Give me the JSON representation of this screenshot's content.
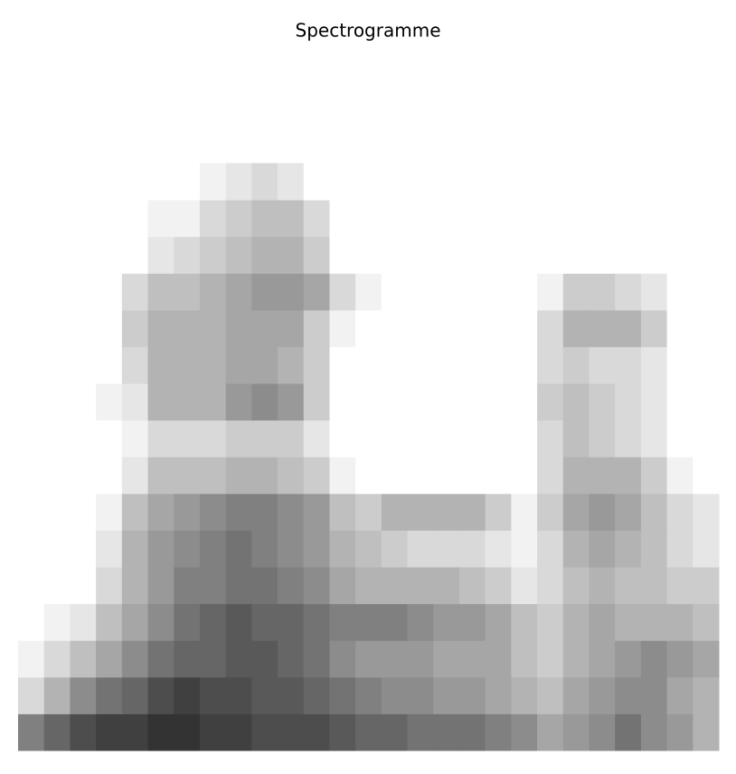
{
  "chart_data": {
    "type": "heatmap",
    "title": "Spectrogramme",
    "colormap": "gray_r",
    "vlim": [
      0,
      100
    ],
    "values": [
      [
        50,
        60,
        70,
        75,
        75,
        80,
        80,
        75,
        75,
        70,
        70,
        70,
        65,
        60,
        60,
        55,
        55,
        55,
        50,
        45,
        35,
        40,
        45,
        55,
        45,
        40,
        30
      ],
      [
        15,
        30,
        45,
        55,
        60,
        70,
        75,
        70,
        70,
        65,
        65,
        60,
        55,
        50,
        45,
        45,
        40,
        40,
        35,
        30,
        25,
        35,
        40,
        45,
        45,
        35,
        30
      ],
      [
        5,
        15,
        25,
        35,
        45,
        55,
        60,
        60,
        65,
        65,
        60,
        55,
        45,
        40,
        40,
        40,
        35,
        35,
        35,
        25,
        20,
        30,
        35,
        40,
        45,
        40,
        35
      ],
      [
        0,
        5,
        10,
        25,
        35,
        45,
        55,
        60,
        65,
        60,
        60,
        55,
        50,
        50,
        50,
        45,
        40,
        40,
        35,
        25,
        20,
        30,
        35,
        30,
        30,
        30,
        25
      ],
      [
        0,
        0,
        0,
        15,
        30,
        40,
        50,
        50,
        55,
        55,
        50,
        45,
        35,
        30,
        30,
        30,
        30,
        25,
        20,
        10,
        15,
        25,
        30,
        25,
        25,
        20,
        20
      ],
      [
        0,
        0,
        0,
        10,
        30,
        40,
        45,
        50,
        55,
        50,
        45,
        40,
        30,
        25,
        20,
        15,
        15,
        15,
        10,
        5,
        15,
        30,
        35,
        30,
        25,
        15,
        10
      ],
      [
        0,
        0,
        0,
        5,
        25,
        35,
        40,
        45,
        50,
        50,
        45,
        40,
        25,
        20,
        30,
        30,
        30,
        30,
        20,
        5,
        20,
        35,
        40,
        35,
        25,
        15,
        10
      ],
      [
        0,
        0,
        0,
        0,
        10,
        25,
        25,
        25,
        30,
        30,
        25,
        20,
        5,
        0,
        0,
        0,
        0,
        0,
        0,
        0,
        15,
        30,
        30,
        30,
        20,
        5,
        0
      ],
      [
        0,
        0,
        0,
        0,
        5,
        15,
        15,
        15,
        20,
        20,
        20,
        10,
        0,
        0,
        0,
        0,
        0,
        0,
        0,
        0,
        15,
        25,
        20,
        15,
        10,
        0,
        0
      ],
      [
        0,
        0,
        0,
        5,
        10,
        30,
        30,
        30,
        40,
        45,
        40,
        20,
        0,
        0,
        0,
        0,
        0,
        0,
        0,
        0,
        20,
        25,
        20,
        15,
        10,
        0,
        0
      ],
      [
        0,
        0,
        0,
        0,
        15,
        30,
        30,
        30,
        35,
        35,
        30,
        20,
        0,
        0,
        0,
        0,
        0,
        0,
        0,
        0,
        15,
        20,
        15,
        15,
        10,
        0,
        0
      ],
      [
        0,
        0,
        0,
        0,
        20,
        30,
        30,
        30,
        35,
        35,
        35,
        20,
        5,
        0,
        0,
        0,
        0,
        0,
        0,
        0,
        15,
        30,
        30,
        30,
        20,
        0,
        0
      ],
      [
        0,
        0,
        0,
        0,
        15,
        25,
        25,
        30,
        35,
        40,
        40,
        35,
        15,
        5,
        0,
        0,
        0,
        0,
        0,
        0,
        5,
        20,
        20,
        15,
        10,
        0,
        0
      ],
      [
        0,
        0,
        0,
        0,
        0,
        10,
        15,
        20,
        25,
        30,
        30,
        20,
        0,
        0,
        0,
        0,
        0,
        0,
        0,
        0,
        0,
        0,
        0,
        0,
        0,
        0,
        0
      ],
      [
        0,
        0,
        0,
        0,
        0,
        5,
        5,
        15,
        20,
        25,
        25,
        15,
        0,
        0,
        0,
        0,
        0,
        0,
        0,
        0,
        0,
        0,
        0,
        0,
        0,
        0,
        0
      ],
      [
        0,
        0,
        0,
        0,
        0,
        0,
        0,
        5,
        10,
        15,
        10,
        0,
        0,
        0,
        0,
        0,
        0,
        0,
        0,
        0,
        0,
        0,
        0,
        0,
        0,
        0,
        0
      ]
    ]
  }
}
